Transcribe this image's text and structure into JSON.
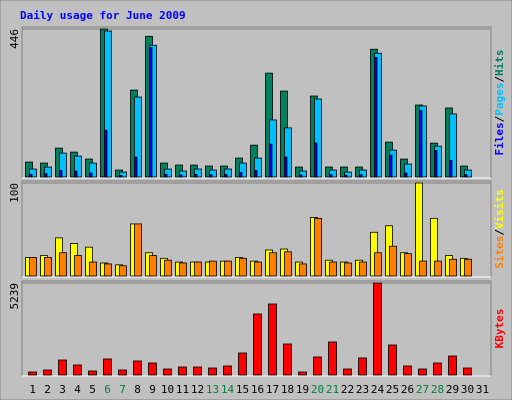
{
  "chart_data": {
    "type": "bar",
    "title": "Daily usage for June 2009",
    "legend_separator": "/",
    "categories": [
      "1",
      "2",
      "3",
      "4",
      "5",
      "6",
      "7",
      "8",
      "9",
      "10",
      "11",
      "12",
      "13",
      "14",
      "15",
      "16",
      "17",
      "18",
      "19",
      "20",
      "21",
      "22",
      "23",
      "24",
      "25",
      "26",
      "27",
      "28",
      "29",
      "30",
      "31"
    ],
    "category_colors": [
      "#000000",
      "#000000",
      "#000000",
      "#000000",
      "#000000",
      "#008040",
      "#008040",
      "#000000",
      "#000000",
      "#000000",
      "#000000",
      "#000000",
      "#008040",
      "#008040",
      "#000000",
      "#000000",
      "#000000",
      "#000000",
      "#000000",
      "#008040",
      "#008040",
      "#000000",
      "#000000",
      "#000000",
      "#000000",
      "#000000",
      "#008040",
      "#008040",
      "#000000",
      "#000000",
      "#000000"
    ],
    "panels": [
      {
        "ylim": [
          0,
          446
        ],
        "yticks": [
          446
        ],
        "series": [
          {
            "name": "Hits",
            "color": "#00805c",
            "values": [
              45,
              42,
              87,
              75,
              54,
              446,
              21,
              262,
              424,
              42,
              36,
              36,
              33,
              33,
              57,
              96,
              313,
              259,
              30,
              244,
              30,
              30,
              30,
              385,
              105,
              54,
              217,
              102,
              208,
              33,
              0
            ]
          },
          {
            "name": "Pages",
            "color": "#00c0ff",
            "values": [
              24,
              30,
              72,
              63,
              42,
              440,
              15,
              241,
              397,
              24,
              18,
              24,
              21,
              24,
              42,
              57,
              172,
              148,
              18,
              235,
              21,
              15,
              21,
              373,
              81,
              39,
              214,
              93,
              190,
              21,
              0
            ]
          },
          {
            "name": "Files",
            "color": "#0000ff",
            "values": [
              8,
              10,
              20,
              18,
              12,
              141,
              5,
              60,
              390,
              8,
              6,
              8,
              7,
              8,
              14,
              20,
              99,
              60,
              6,
              102,
              7,
              5,
              7,
              360,
              66,
              12,
              200,
              80,
              50,
              7,
              0
            ]
          }
        ]
      },
      {
        "ylim": [
          0,
          100
        ],
        "yticks": [
          100
        ],
        "series": [
          {
            "name": "Visits",
            "color": "#ffff00",
            "values": [
              20,
              22,
              41,
              35,
              31,
              14,
              12,
              56,
              25,
              19,
              15,
              15,
              15,
              16,
              20,
              16,
              28,
              29,
              15,
              63,
              17,
              15,
              17,
              47,
              54,
              25,
              100,
              62,
              22,
              19,
              0
            ]
          },
          {
            "name": "Sites",
            "color": "#ff8000",
            "values": [
              20,
              20,
              25,
              22,
              15,
              13,
              11,
              56,
              22,
              17,
              14,
              15,
              16,
              16,
              19,
              15,
              25,
              26,
              13,
              62,
              15,
              14,
              15,
              25,
              32,
              24,
              16,
              16,
              18,
              18,
              0
            ]
          }
        ]
      },
      {
        "ylim": [
          0,
          5239
        ],
        "yticks": [
          5239
        ],
        "series": [
          {
            "name": "KBytes",
            "color": "#ff0000",
            "values": [
              171,
              285,
              855,
              570,
              228,
              912,
              285,
              798,
              684,
              342,
              456,
              456,
              399,
              513,
              1253,
              3474,
              4044,
              1766,
              171,
              1025,
              1880,
              342,
              969,
              5239,
              1709,
              513,
              342,
              684,
              1082,
              399,
              0
            ]
          }
        ]
      }
    ]
  }
}
